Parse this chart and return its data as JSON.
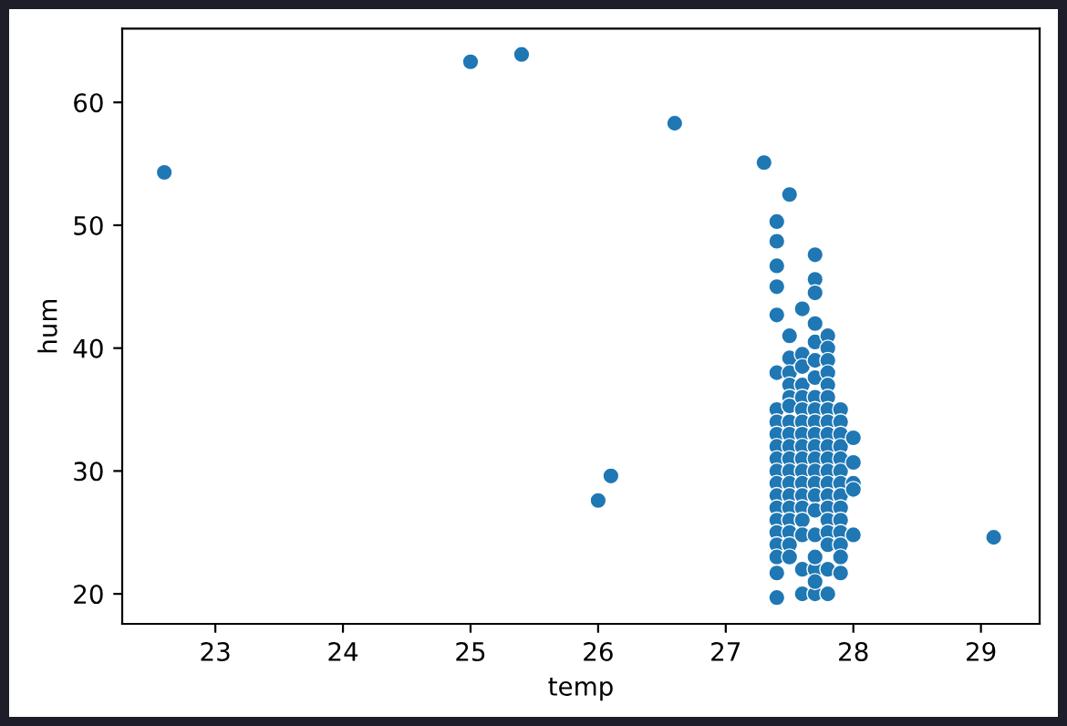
{
  "chart_data": {
    "type": "scatter",
    "xlabel": "temp",
    "ylabel": "hum",
    "xlim": [
      22.27,
      29.46
    ],
    "ylim": [
      17.56,
      66.0
    ],
    "xticks": [
      23,
      24,
      25,
      26,
      27,
      28,
      29
    ],
    "yticks": [
      20,
      30,
      40,
      50,
      60
    ],
    "grid": false,
    "marker": "circle",
    "series": [
      {
        "color": "#1f77b4",
        "x": [
          22.6,
          25.0,
          25.4,
          26.6,
          27.3,
          27.5,
          26.0,
          26.1,
          29.1,
          27.4,
          27.4,
          27.4,
          27.4,
          27.4,
          27.4,
          27.4,
          27.4,
          27.4,
          27.4,
          27.4,
          27.4,
          27.4,
          27.4,
          27.4,
          27.4,
          27.4,
          27.4,
          27.4,
          27.4,
          27.4,
          27.5,
          27.5,
          27.5,
          27.5,
          27.5,
          27.5,
          27.5,
          27.5,
          27.5,
          27.5,
          27.5,
          27.5,
          27.5,
          27.5,
          27.5,
          27.5,
          27.5,
          27.5,
          27.6,
          27.6,
          27.6,
          27.6,
          27.6,
          27.6,
          27.6,
          27.6,
          27.6,
          27.6,
          27.6,
          27.6,
          27.6,
          27.6,
          27.6,
          27.6,
          27.6,
          27.6,
          27.7,
          27.7,
          27.7,
          27.7,
          27.7,
          27.7,
          27.7,
          27.7,
          27.7,
          27.7,
          27.7,
          27.7,
          27.7,
          27.7,
          27.7,
          27.7,
          27.7,
          27.7,
          27.7,
          27.7,
          27.7,
          27.7,
          27.8,
          27.8,
          27.8,
          27.8,
          27.8,
          27.8,
          27.8,
          27.8,
          27.8,
          27.8,
          27.8,
          27.8,
          27.8,
          27.8,
          27.8,
          27.8,
          27.8,
          27.8,
          27.8,
          27.8,
          27.9,
          27.9,
          27.9,
          27.9,
          27.9,
          27.9,
          27.9,
          27.9,
          27.9,
          27.9,
          27.9,
          27.9,
          27.9,
          27.9,
          28.0,
          28.0,
          28.0,
          28.0,
          28.0
        ],
        "values": [
          54.3,
          63.3,
          63.9,
          58.3,
          55.1,
          52.5,
          27.6,
          29.6,
          24.6,
          50.3,
          48.7,
          46.7,
          45.0,
          42.7,
          38.0,
          35,
          34,
          33,
          32,
          31,
          30,
          29,
          28,
          27,
          26,
          25,
          24,
          23,
          21.7,
          19.7,
          41.0,
          39.2,
          38,
          37,
          36,
          35.3,
          34,
          33,
          32,
          31,
          30,
          29,
          28,
          27,
          26,
          25,
          24,
          23,
          43.2,
          39.5,
          38.5,
          37,
          36,
          35,
          34,
          33,
          32,
          31,
          30,
          29,
          28,
          27,
          26,
          24.8,
          22,
          20,
          47.6,
          45.6,
          44.5,
          42.0,
          40.5,
          39,
          37.6,
          36,
          35,
          34,
          33,
          32,
          31,
          30,
          29,
          28,
          26.8,
          24.8,
          22,
          20,
          21,
          23,
          41,
          40,
          39,
          38,
          37,
          36,
          35,
          34,
          33,
          32,
          31,
          30,
          29,
          28,
          27,
          26,
          25,
          24,
          22,
          20,
          35,
          34,
          33,
          32,
          31,
          30,
          29,
          28,
          27,
          26,
          25,
          24,
          23,
          21.7,
          32.7,
          30.7,
          29,
          28.5,
          24.8
        ]
      }
    ]
  }
}
